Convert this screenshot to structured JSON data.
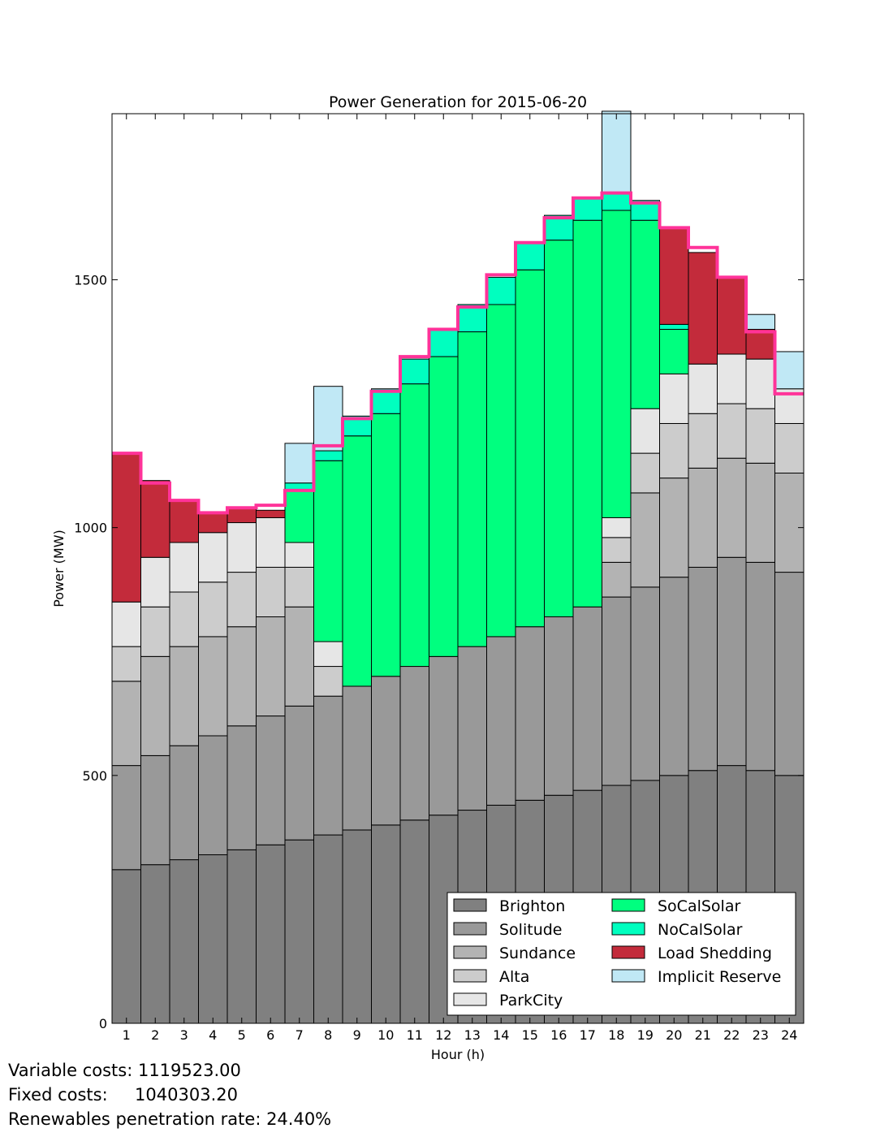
{
  "chart_data": {
    "type": "bar",
    "stacked": true,
    "title": "Power Generation for 2015-06-20",
    "xlabel": "Hour (h)",
    "ylabel": "Power (MW)",
    "ylim": [
      0,
      1835
    ],
    "yticks": [
      0,
      500,
      1000,
      1500
    ],
    "categories": [
      "1",
      "2",
      "3",
      "4",
      "5",
      "6",
      "7",
      "8",
      "9",
      "10",
      "11",
      "12",
      "13",
      "14",
      "15",
      "16",
      "17",
      "18",
      "19",
      "20",
      "21",
      "22",
      "23",
      "24"
    ],
    "series": [
      {
        "name": "Brighton",
        "color": "#808080",
        "values": [
          310,
          320,
          330,
          340,
          350,
          360,
          370,
          380,
          390,
          400,
          410,
          420,
          430,
          440,
          450,
          460,
          470,
          480,
          490,
          500,
          510,
          520,
          510,
          500
        ]
      },
      {
        "name": "Solitude",
        "color": "#999999",
        "values": [
          210,
          220,
          230,
          240,
          250,
          260,
          270,
          280,
          290,
          300,
          310,
          320,
          330,
          340,
          350,
          360,
          370,
          380,
          390,
          400,
          410,
          420,
          420,
          410
        ]
      },
      {
        "name": "Sundance",
        "color": "#b3b3b3",
        "values": [
          170,
          200,
          200,
          200,
          200,
          200,
          200,
          0,
          0,
          0,
          0,
          0,
          0,
          0,
          0,
          0,
          0,
          70,
          190,
          200,
          200,
          200,
          200,
          200
        ]
      },
      {
        "name": "Alta",
        "color": "#cccccc",
        "values": [
          70,
          100,
          110,
          110,
          110,
          100,
          80,
          60,
          0,
          0,
          0,
          0,
          0,
          0,
          0,
          0,
          0,
          50,
          80,
          110,
          110,
          110,
          110,
          100
        ]
      },
      {
        "name": "ParkCity",
        "color": "#e6e6e6",
        "values": [
          90,
          100,
          100,
          100,
          100,
          100,
          50,
          50,
          0,
          0,
          0,
          0,
          0,
          0,
          0,
          0,
          0,
          40,
          90,
          100,
          100,
          100,
          100,
          70
        ]
      },
      {
        "name": "SoCalSolar",
        "color": "#00ff7f",
        "values": [
          0,
          0,
          0,
          0,
          0,
          0,
          105,
          365,
          505,
          530,
          570,
          605,
          635,
          670,
          720,
          760,
          780,
          620,
          380,
          90,
          0,
          0,
          0,
          0
        ]
      },
      {
        "name": "NoCalSolar",
        "color": "#00ffbf",
        "values": [
          0,
          0,
          0,
          0,
          0,
          0,
          15,
          20,
          40,
          50,
          50,
          55,
          55,
          55,
          55,
          50,
          45,
          35,
          40,
          10,
          0,
          0,
          0,
          0
        ]
      },
      {
        "name": "Load Shedding",
        "color": "#c32b3b",
        "values": [
          300,
          155,
          85,
          40,
          30,
          15,
          0,
          0,
          0,
          0,
          0,
          0,
          0,
          0,
          0,
          0,
          0,
          0,
          0,
          195,
          225,
          155,
          60,
          0
        ]
      },
      {
        "name": "Implicit Reserve",
        "color": "#c0e8f5",
        "values": [
          0,
          0,
          0,
          0,
          0,
          0,
          80,
          130,
          0,
          0,
          0,
          0,
          0,
          0,
          0,
          0,
          0,
          165,
          0,
          0,
          0,
          0,
          30,
          75
        ]
      }
    ],
    "demand_line": {
      "color": "#ff3399",
      "values": [
        1150,
        1090,
        1055,
        1030,
        1040,
        1045,
        1075,
        1165,
        1220,
        1275,
        1345,
        1400,
        1445,
        1510,
        1575,
        1625,
        1665,
        1675,
        1655,
        1605,
        1565,
        1505,
        1395,
        1270
      ]
    },
    "legend": {
      "position": "lower-right",
      "columns": 2
    }
  },
  "footer": {
    "variable_costs": "Variable costs: 1119523.00",
    "fixed_costs": "Fixed costs:     1040303.20",
    "renewables": "Renewables penetration rate: 24.40%"
  }
}
